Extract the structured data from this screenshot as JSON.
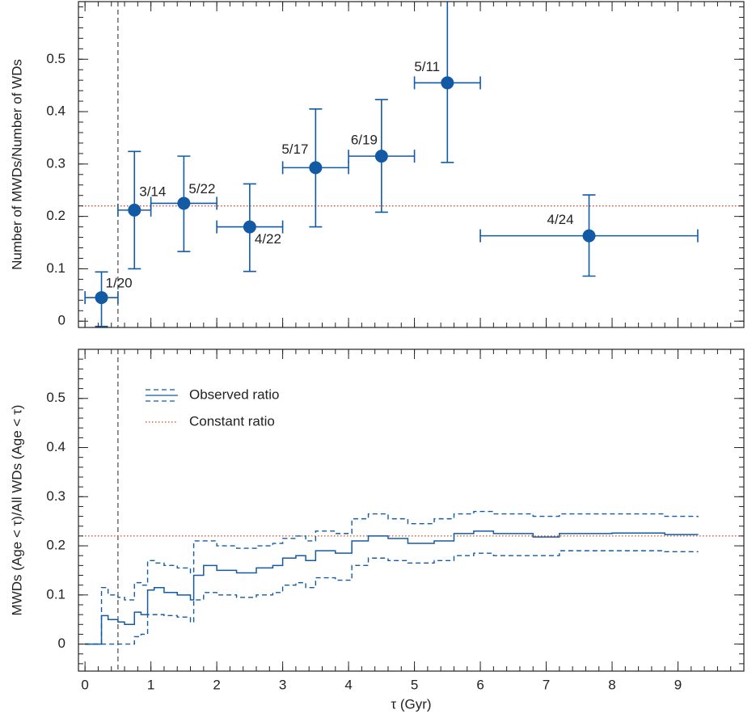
{
  "chart_data": [
    {
      "type": "errorbar",
      "ylabel": "Number of MWDs/Number of WDs",
      "xlim": [
        -0.1,
        10
      ],
      "ylim": [
        -0.012,
        0.61
      ],
      "xticks": [
        0,
        1,
        2,
        3,
        4,
        5,
        6,
        7,
        8,
        9
      ],
      "yticks": [
        0,
        0.1,
        0.2,
        0.3,
        0.4,
        0.5
      ],
      "xminor": 0.2,
      "yminor": 0.02,
      "show_xtick_labels": false,
      "vline": 0.5,
      "constant": {
        "value": 0.22,
        "color": "#d9442b"
      },
      "series": [
        {
          "color": "#135aa5",
          "x": [
            0.25,
            0.75,
            1.5,
            2.5,
            3.5,
            4.5,
            5.5,
            7.65
          ],
          "values": [
            0.045,
            0.212,
            0.225,
            0.18,
            0.293,
            0.315,
            0.455,
            0.163
          ],
          "xlow": [
            0,
            0.5,
            1,
            2,
            3,
            4,
            5,
            6
          ],
          "xhigh": [
            0.5,
            1,
            2,
            3,
            4,
            5,
            6,
            9.3
          ],
          "ylow": [
            -0.01,
            0.1,
            0.133,
            0.095,
            0.18,
            0.208,
            0.303,
            0.086
          ],
          "yhigh": [
            0.094,
            0.324,
            0.315,
            0.262,
            0.405,
            0.423,
            0.65,
            0.241
          ],
          "labels": [
            "1/20",
            "3/14",
            "5/22",
            "4/22",
            "5/17",
            "6/19",
            "5/11",
            "4/24"
          ]
        }
      ]
    },
    {
      "type": "step",
      "xlabel": "τ (Gyr)",
      "ylabel": "MWDs (Age < τ)/All WDs (Age < τ)",
      "xlim": [
        -0.1,
        10
      ],
      "ylim": [
        -0.055,
        0.6
      ],
      "xticks": [
        0,
        1,
        2,
        3,
        4,
        5,
        6,
        7,
        8,
        9
      ],
      "yticks": [
        0,
        0.1,
        0.2,
        0.3,
        0.4,
        0.5
      ],
      "xminor": 0.2,
      "yminor": 0.02,
      "show_xtick_labels": true,
      "vline": 0.5,
      "constant": {
        "name": "Constant ratio",
        "value": 0.22,
        "color": "#d9442b"
      },
      "series": [
        {
          "name": "Observed ratio",
          "color": "#135aa5",
          "x": [
            0,
            0.25,
            0.35,
            0.5,
            0.6,
            0.75,
            0.85,
            0.95,
            1.05,
            1.2,
            1.4,
            1.6,
            1.65,
            1.8,
            2.0,
            2.3,
            2.6,
            2.85,
            3.0,
            3.2,
            3.35,
            3.5,
            3.8,
            4.05,
            4.3,
            4.6,
            4.9,
            5.3,
            5.6,
            5.9,
            6.2,
            6.8,
            7.2,
            8.0,
            8.8,
            9.3
          ],
          "values": [
            0,
            0.058,
            0.05,
            0.045,
            0.04,
            0.065,
            0.06,
            0.11,
            0.115,
            0.105,
            0.1,
            0.09,
            0.14,
            0.16,
            0.15,
            0.145,
            0.155,
            0.16,
            0.175,
            0.18,
            0.17,
            0.19,
            0.185,
            0.21,
            0.22,
            0.215,
            0.205,
            0.21,
            0.225,
            0.23,
            0.225,
            0.218,
            0.225,
            0.226,
            0.223,
            0.222
          ],
          "upper": [
            0,
            0.115,
            0.1,
            0.095,
            0.09,
            0.125,
            0.12,
            0.17,
            0.165,
            0.16,
            0.155,
            0.145,
            0.21,
            0.21,
            0.2,
            0.195,
            0.2,
            0.205,
            0.215,
            0.22,
            0.21,
            0.23,
            0.225,
            0.255,
            0.265,
            0.255,
            0.245,
            0.255,
            0.265,
            0.27,
            0.265,
            0.26,
            0.265,
            0.265,
            0.26,
            0.258
          ],
          "lower": [
            0,
            0,
            0,
            0,
            0,
            0.015,
            0.02,
            0.06,
            0.06,
            0.058,
            0.055,
            0.045,
            0.09,
            0.105,
            0.1,
            0.095,
            0.1,
            0.105,
            0.12,
            0.125,
            0.115,
            0.135,
            0.13,
            0.16,
            0.175,
            0.17,
            0.165,
            0.17,
            0.18,
            0.185,
            0.18,
            0.18,
            0.19,
            0.19,
            0.188,
            0.187
          ]
        }
      ]
    }
  ]
}
